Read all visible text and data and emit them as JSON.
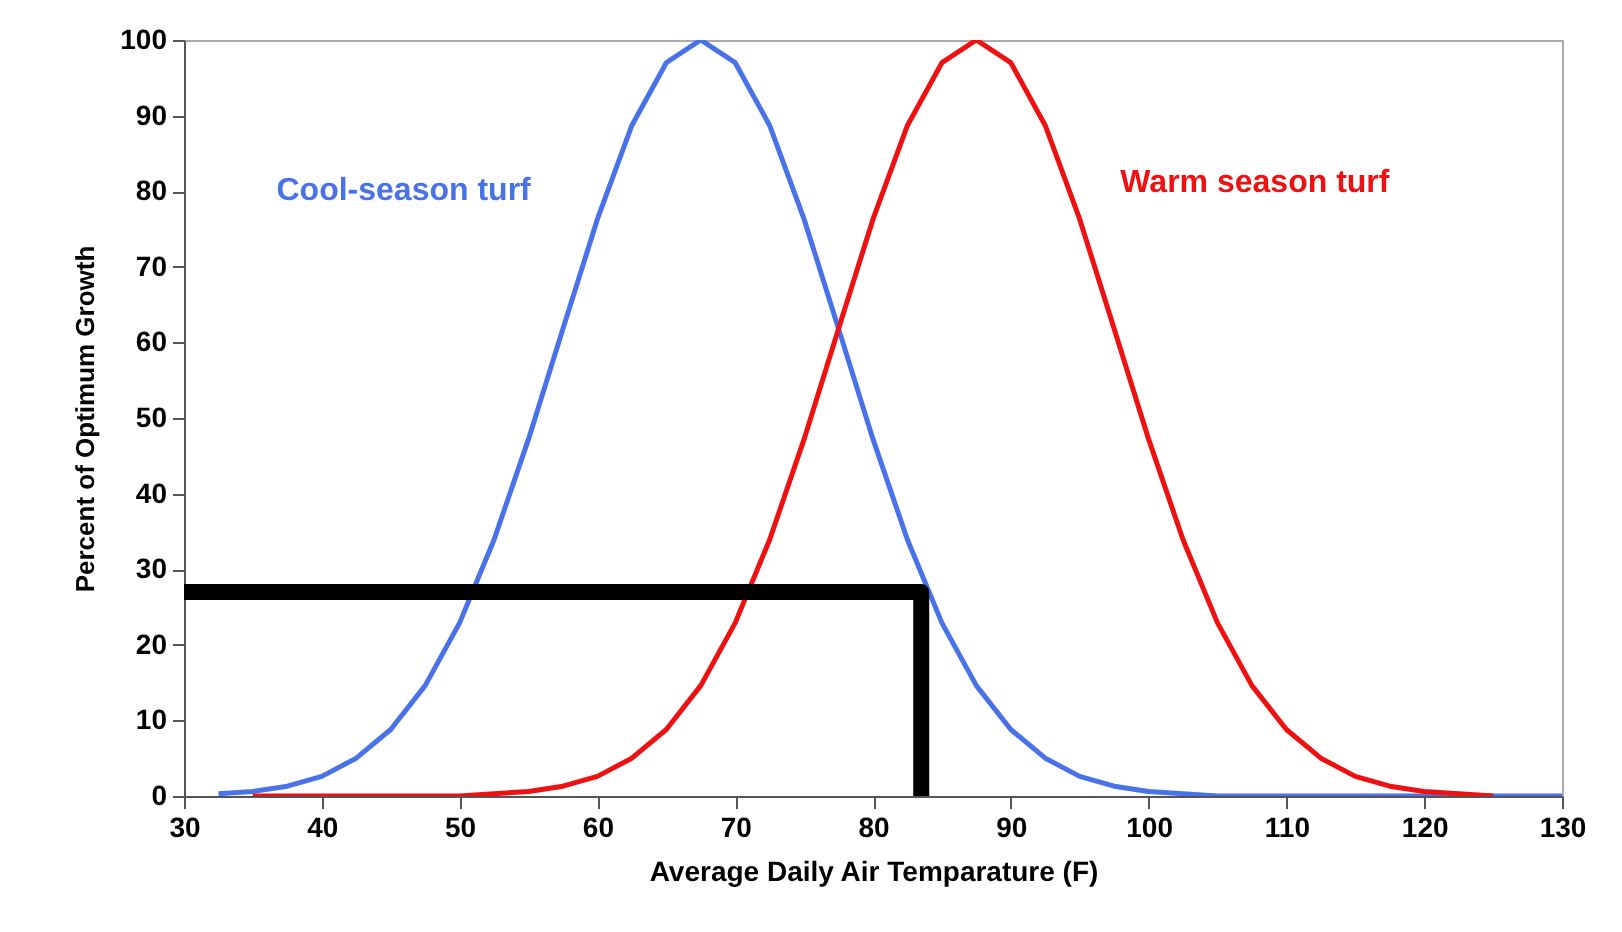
{
  "chart_data": {
    "type": "line",
    "xlabel": "Average Daily Air Temparature (F)",
    "ylabel": "Percent of Optimum Growth",
    "xlim": [
      30,
      130
    ],
    "xticks": [
      30,
      40,
      50,
      60,
      70,
      80,
      90,
      100,
      110,
      120,
      130
    ],
    "ylim": [
      0,
      100
    ],
    "yticks": [
      0,
      10,
      20,
      30,
      40,
      50,
      60,
      70,
      80,
      90,
      100
    ],
    "grid": false,
    "series": [
      {
        "name": "Cool-season turf",
        "color": "#4a72e8",
        "x": [
          32.5,
          35,
          37.5,
          40,
          42.5,
          45,
          47.5,
          50,
          52.5,
          55,
          57.5,
          60,
          62.5,
          65,
          67.5,
          70,
          72.5,
          75,
          77.5,
          80,
          82.5,
          85,
          87.5,
          90,
          92.5,
          95,
          97.5,
          100,
          102.5,
          105,
          130
        ],
        "values": [
          0.3,
          0.6,
          1.3,
          2.6,
          5.0,
          8.8,
          14.6,
          22.9,
          33.9,
          47.2,
          61.8,
          76.3,
          88.7,
          97,
          100,
          97,
          88.7,
          76.3,
          61.8,
          47.2,
          33.9,
          22.9,
          14.6,
          8.8,
          5.0,
          2.6,
          1.3,
          0.6,
          0.3,
          0,
          0
        ]
      },
      {
        "name": "Warm season turf",
        "color": "#ee1111",
        "x": [
          35,
          50,
          52.5,
          55,
          57.5,
          60,
          62.5,
          65,
          67.5,
          70,
          72.5,
          75,
          77.5,
          80,
          82.5,
          85,
          87.5,
          90,
          92.5,
          95,
          97.5,
          100,
          102.5,
          105,
          107.5,
          110,
          112.5,
          115,
          117.5,
          120,
          122.5,
          125
        ],
        "values": [
          0,
          0,
          0.3,
          0.6,
          1.3,
          2.6,
          5.0,
          8.8,
          14.6,
          22.9,
          33.9,
          47.2,
          61.8,
          76.3,
          88.7,
          97,
          100,
          97,
          88.7,
          76.3,
          61.8,
          47.2,
          33.9,
          22.9,
          14.6,
          8.8,
          5.0,
          2.6,
          1.3,
          0.6,
          0.3,
          0
        ]
      },
      {
        "color": "#000000",
        "x": [
          30,
          83.5,
          83.5
        ],
        "values": [
          27,
          27,
          0
        ]
      }
    ]
  }
}
